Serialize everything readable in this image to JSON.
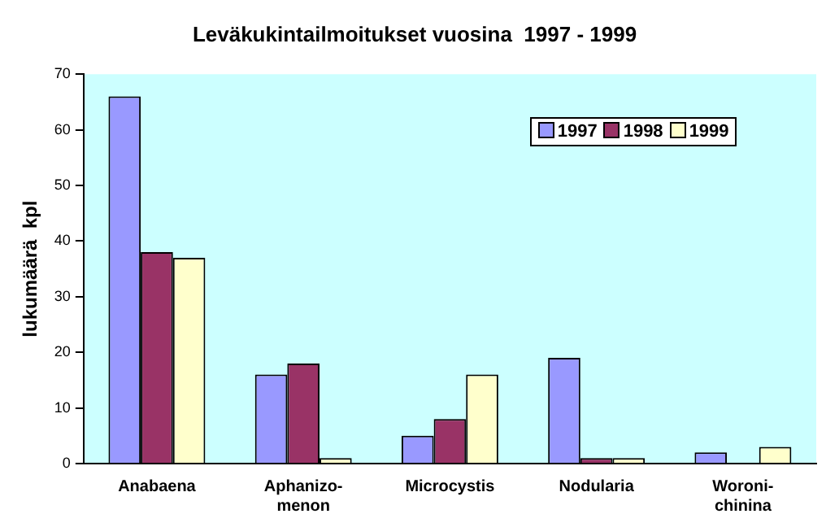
{
  "chart_data": {
    "type": "bar",
    "title": "Leväkukintailmoitukset vuosina  1997 - 1999",
    "ylabel": "lukumäärä  kpl",
    "categories": [
      "Anabaena",
      "Aphanizo-\nmenon",
      "Microcystis",
      "Nodularia",
      "Woroni-\nchinina"
    ],
    "series": [
      {
        "name": "1997",
        "color": "#9999ff",
        "values": [
          66,
          16,
          5,
          19,
          2
        ]
      },
      {
        "name": "1998",
        "color": "#993366",
        "values": [
          38,
          18,
          8,
          1,
          0
        ]
      },
      {
        "name": "1999",
        "color": "#ffffcc",
        "values": [
          37,
          1,
          16,
          1,
          3
        ]
      }
    ],
    "ylim": [
      0,
      70
    ],
    "yticks": [
      0,
      10,
      20,
      30,
      40,
      50,
      60,
      70
    ],
    "grid": false,
    "legend": "top right"
  }
}
